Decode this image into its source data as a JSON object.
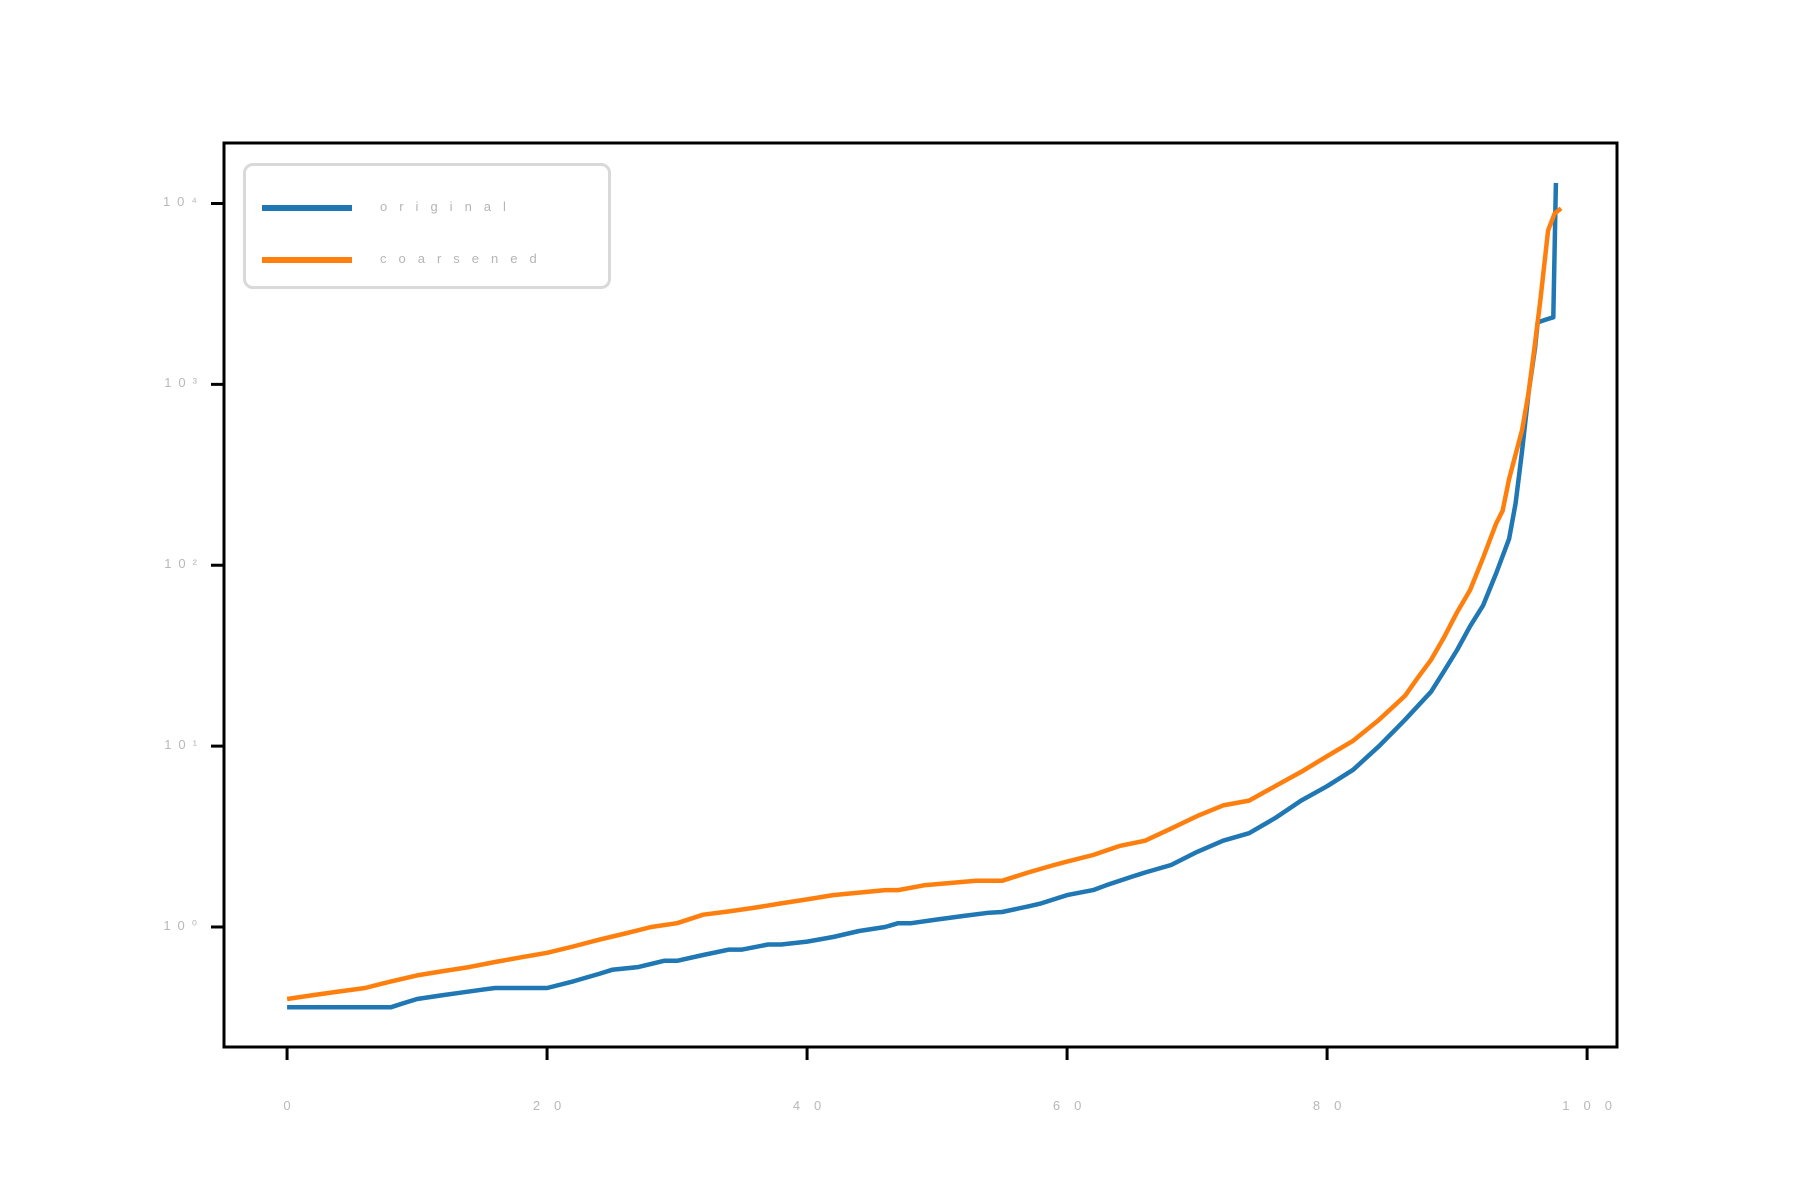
{
  "figure": {
    "background": "#ffffff",
    "title": ""
  },
  "legend": {
    "items": [
      {
        "label": "original",
        "color": "#1f77b4"
      },
      {
        "label": "coarsened",
        "color": "#ff7f0e"
      }
    ]
  },
  "colors": {
    "series_blue": "#1f77b4",
    "series_orange": "#ff7f0e",
    "spine": "#000000",
    "faint_text": "#b8b8b8"
  },
  "chart_data": {
    "type": "line",
    "title": "",
    "xlabel": "",
    "ylabel": "",
    "grid": false,
    "legend_position": "upper left",
    "x_scale": "linear",
    "y_scale": "log",
    "xlim": [
      -4.85,
      102.3
    ],
    "ylim": [
      0.217,
      21600
    ],
    "x_ticks": {
      "values": [
        0,
        20,
        40,
        60,
        80,
        100
      ],
      "labels": [
        "0",
        "20",
        "40",
        "60",
        "80",
        "100"
      ]
    },
    "y_ticks": {
      "values": [
        1,
        10,
        100,
        1000,
        10000
      ],
      "labels": [
        "10⁰",
        "10¹",
        "10²",
        "10³",
        "10⁴"
      ]
    },
    "series": [
      {
        "name": "original",
        "color": "#1f77b4",
        "points": [
          [
            0,
            0.36
          ],
          [
            2,
            0.36
          ],
          [
            4,
            0.36
          ],
          [
            6,
            0.36
          ],
          [
            8,
            0.36
          ],
          [
            9,
            0.38
          ],
          [
            10,
            0.4
          ],
          [
            12,
            0.42
          ],
          [
            13,
            0.43
          ],
          [
            15,
            0.45
          ],
          [
            16,
            0.46
          ],
          [
            19,
            0.46
          ],
          [
            20,
            0.46
          ],
          [
            22,
            0.5
          ],
          [
            24,
            0.55
          ],
          [
            25,
            0.58
          ],
          [
            27,
            0.6
          ],
          [
            29,
            0.65
          ],
          [
            30,
            0.65
          ],
          [
            32,
            0.7
          ],
          [
            34,
            0.75
          ],
          [
            35,
            0.75
          ],
          [
            37,
            0.8
          ],
          [
            38,
            0.8
          ],
          [
            40,
            0.83
          ],
          [
            42,
            0.88
          ],
          [
            44,
            0.95
          ],
          [
            46,
            1.0
          ],
          [
            47,
            1.05
          ],
          [
            48,
            1.05
          ],
          [
            50,
            1.1
          ],
          [
            52,
            1.15
          ],
          [
            54,
            1.2
          ],
          [
            55,
            1.21
          ],
          [
            57,
            1.3
          ],
          [
            58,
            1.35
          ],
          [
            60,
            1.5
          ],
          [
            62,
            1.6
          ],
          [
            63,
            1.7
          ],
          [
            65,
            1.9
          ],
          [
            66,
            2.0
          ],
          [
            68,
            2.2
          ],
          [
            70,
            2.6
          ],
          [
            72,
            3.0
          ],
          [
            74,
            3.3
          ],
          [
            76,
            4.0
          ],
          [
            78,
            5.0
          ],
          [
            80,
            6.0
          ],
          [
            82,
            7.4
          ],
          [
            84,
            10
          ],
          [
            86,
            14
          ],
          [
            88,
            20
          ],
          [
            89,
            26
          ],
          [
            90,
            34
          ],
          [
            91,
            46
          ],
          [
            92,
            60
          ],
          [
            93,
            90
          ],
          [
            94,
            140
          ],
          [
            94.5,
            220
          ],
          [
            95,
            430
          ],
          [
            95.5,
            900
          ],
          [
            96,
            1600
          ],
          [
            96.2,
            2200
          ],
          [
            97,
            2300
          ],
          [
            97.4,
            2350
          ],
          [
            97.6,
            13000
          ]
        ]
      },
      {
        "name": "coarsened",
        "color": "#ff7f0e",
        "points": [
          [
            0,
            0.4
          ],
          [
            2,
            0.42
          ],
          [
            4,
            0.44
          ],
          [
            6,
            0.46
          ],
          [
            8,
            0.5
          ],
          [
            10,
            0.54
          ],
          [
            12,
            0.57
          ],
          [
            14,
            0.6
          ],
          [
            16,
            0.64
          ],
          [
            18,
            0.68
          ],
          [
            20,
            0.72
          ],
          [
            22,
            0.78
          ],
          [
            24,
            0.85
          ],
          [
            26,
            0.92
          ],
          [
            28,
            1.0
          ],
          [
            30,
            1.05
          ],
          [
            32,
            1.17
          ],
          [
            34,
            1.22
          ],
          [
            36,
            1.28
          ],
          [
            38,
            1.35
          ],
          [
            40,
            1.42
          ],
          [
            42,
            1.5
          ],
          [
            44,
            1.55
          ],
          [
            46,
            1.6
          ],
          [
            47,
            1.6
          ],
          [
            49,
            1.7
          ],
          [
            51,
            1.75
          ],
          [
            53,
            1.8
          ],
          [
            55,
            1.8
          ],
          [
            57,
            2.0
          ],
          [
            59,
            2.2
          ],
          [
            60,
            2.3
          ],
          [
            62,
            2.5
          ],
          [
            64,
            2.8
          ],
          [
            66,
            3.0
          ],
          [
            68,
            3.5
          ],
          [
            70,
            4.1
          ],
          [
            72,
            4.7
          ],
          [
            74,
            5.0
          ],
          [
            76,
            6.0
          ],
          [
            78,
            7.2
          ],
          [
            80,
            8.8
          ],
          [
            82,
            10.7
          ],
          [
            84,
            14
          ],
          [
            86,
            19
          ],
          [
            87,
            24
          ],
          [
            88,
            30
          ],
          [
            89,
            40
          ],
          [
            90,
            55
          ],
          [
            91,
            73
          ],
          [
            92,
            110
          ],
          [
            93,
            170
          ],
          [
            93.5,
            200
          ],
          [
            94,
            300
          ],
          [
            95,
            560
          ],
          [
            95.5,
            900
          ],
          [
            96,
            1700
          ],
          [
            96.4,
            2900
          ],
          [
            97,
            7100
          ],
          [
            97.5,
            8800
          ],
          [
            98,
            9400
          ]
        ]
      }
    ]
  }
}
